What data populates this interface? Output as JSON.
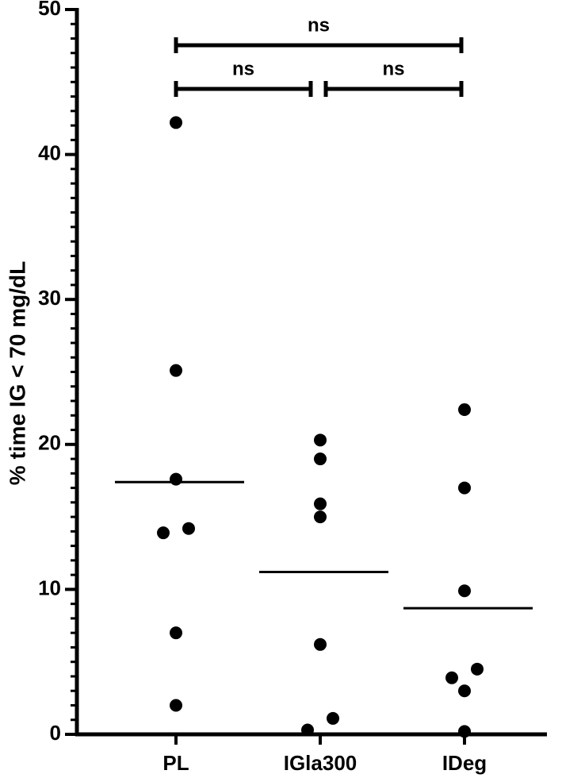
{
  "chart_data": {
    "type": "dot",
    "ylabel": "% time IG < 70 mg/dL",
    "categories": [
      "PL",
      "IGla300",
      "IDeg"
    ],
    "values": [
      [
        42.2,
        25.1,
        17.6,
        13.9,
        14.2,
        7.0,
        2.0
      ],
      [
        20.3,
        19.0,
        15.9,
        15.0,
        6.2,
        0.3,
        1.1
      ],
      [
        22.4,
        17.0,
        9.9,
        3.9,
        4.5,
        3.0,
        0.2
      ]
    ],
    "means": [
      17.4,
      11.2,
      8.7
    ],
    "color": "#000000",
    "ylim": [
      0,
      50
    ],
    "yticks": [
      0,
      10,
      20,
      30,
      40,
      50
    ],
    "yminor_step": 1,
    "comparisons": [
      {
        "pair": [
          0,
          2
        ],
        "label": "ns"
      },
      {
        "pair": [
          0,
          1
        ],
        "label": "ns"
      },
      {
        "pair": [
          1,
          2
        ],
        "label": "ns"
      }
    ]
  }
}
